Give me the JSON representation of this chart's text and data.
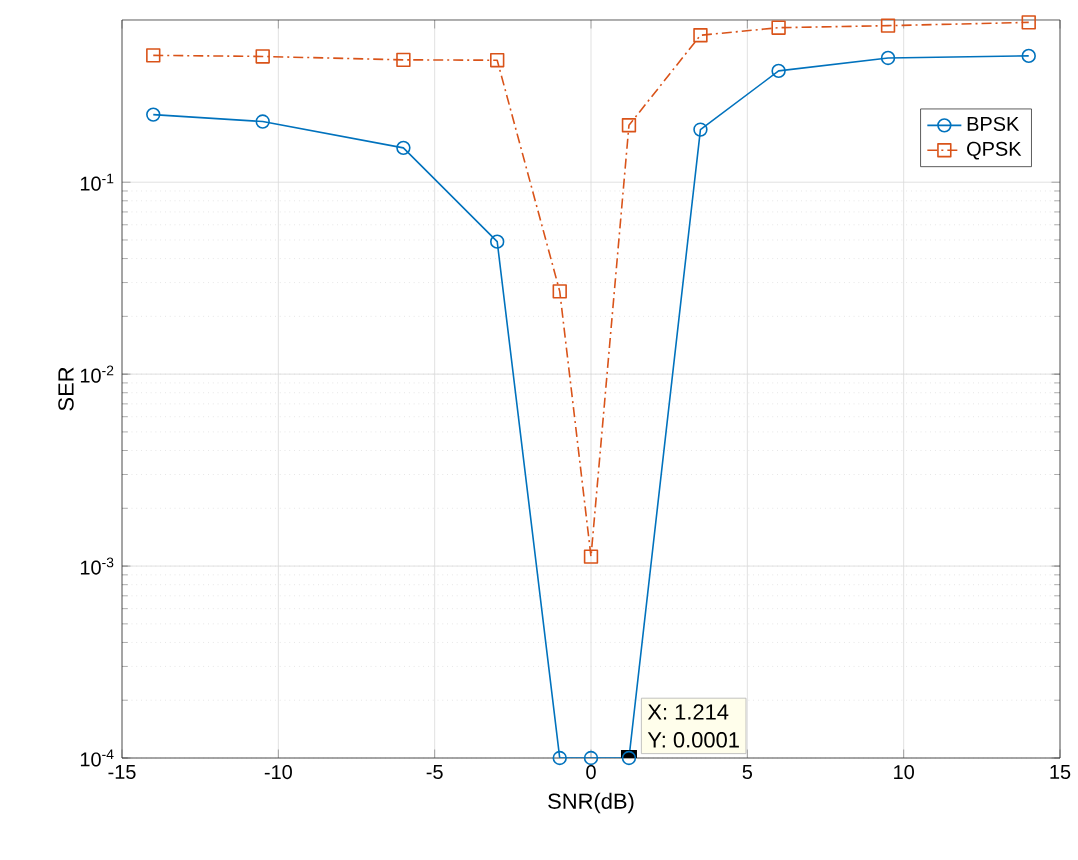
{
  "chart_data": {
    "type": "line",
    "xlabel": "SNR(dB)",
    "ylabel": "SER",
    "log": "y",
    "xlim": [
      -15,
      15
    ],
    "xticks": [
      -15,
      -10,
      -5,
      0,
      5,
      10,
      15
    ],
    "ylim": [
      0.0001,
      0.7
    ],
    "yticks": [
      {
        "value": 0.0001,
        "label": "10$^{-4}$"
      },
      {
        "value": 0.001,
        "label": "10$^{-3}$"
      },
      {
        "value": 0.01,
        "label": "10$^{-2}$"
      },
      {
        "value": 0.1,
        "label": "10$^{-1}$"
      }
    ],
    "x": [
      -14,
      -10.5,
      -6,
      -3,
      -1,
      0,
      1.214,
      3.5,
      6,
      9.5,
      14
    ],
    "series": [
      {
        "name": "BPSK",
        "color": "#0072bd",
        "marker": "circle",
        "line_style": "solid",
        "values": [
          0.225,
          0.207,
          0.151,
          0.049,
          0.0001,
          0.0001,
          0.0001,
          0.188,
          0.38,
          0.444,
          0.455
        ]
      },
      {
        "name": "QPSK",
        "color": "#d95319",
        "marker": "square",
        "line_style": "dashdot",
        "values": [
          0.458,
          0.452,
          0.434,
          0.432,
          0.027,
          0.00112,
          0.198,
          0.583,
          0.638,
          0.654,
          0.68
        ]
      }
    ],
    "grid": true,
    "legend": "top right",
    "annotations": [
      {
        "text": "X: 1.214",
        "x": 1.214,
        "y": 0.0001
      },
      "Y: 0.0001"
    ]
  }
}
